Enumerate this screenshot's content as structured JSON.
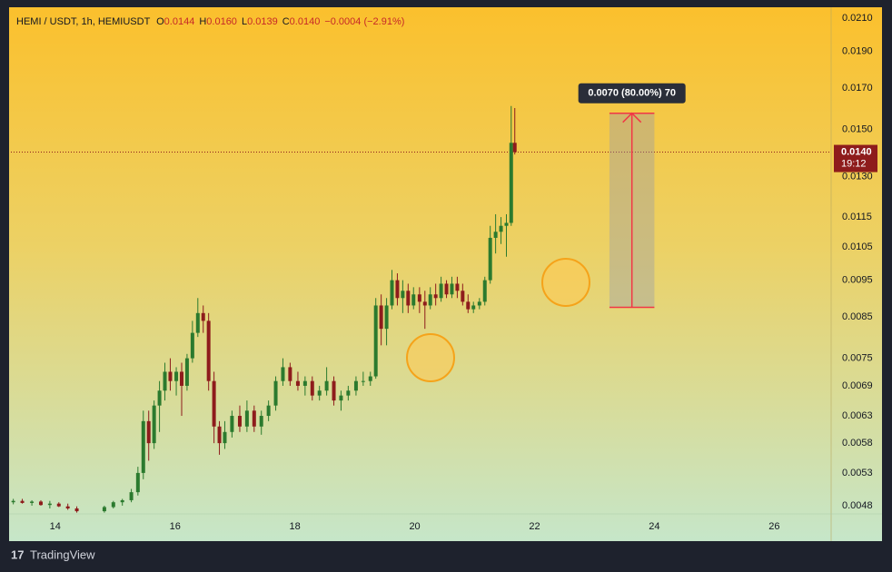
{
  "chart_data": {
    "type": "candlestick",
    "legend": {
      "symbol": "HEMI / USDT, 1h, HEMIUSDT",
      "items": [
        {
          "key": "O",
          "value": "0.0144"
        },
        {
          "key": "H",
          "value": "0.0160"
        },
        {
          "key": "L",
          "value": "0.0139"
        },
        {
          "key": "C",
          "value": "0.0140"
        }
      ],
      "change": "−0.0004 (−2.91%)"
    },
    "x": [
      13.3,
      13.45,
      13.61,
      13.76,
      13.91,
      14.06,
      14.21,
      14.36,
      14.82,
      14.97,
      15.12,
      15.27,
      15.38,
      15.47,
      15.56,
      15.65,
      15.74,
      15.83,
      15.92,
      16.02,
      16.11,
      16.2,
      16.29,
      16.38,
      16.47,
      16.56,
      16.65,
      16.74,
      16.83,
      16.95,
      17.08,
      17.2,
      17.32,
      17.44,
      17.56,
      17.68,
      17.8,
      17.92,
      18.05,
      18.17,
      18.29,
      18.41,
      18.53,
      18.65,
      18.77,
      18.89,
      19.02,
      19.14,
      19.26,
      19.35,
      19.44,
      19.53,
      19.62,
      19.71,
      19.8,
      19.89,
      19.98,
      20.08,
      20.17,
      20.26,
      20.35,
      20.44,
      20.53,
      20.62,
      20.71,
      20.8,
      20.89,
      20.98,
      21.08,
      21.17,
      21.26,
      21.35,
      21.44,
      21.53,
      21.61,
      21.67
    ],
    "ohlc": [
      [
        0.00485,
        0.0049,
        0.00482,
        0.00487
      ],
      [
        0.00487,
        0.0049,
        0.00483,
        0.00484
      ],
      [
        0.00484,
        0.00488,
        0.0048,
        0.00486
      ],
      [
        0.00486,
        0.00488,
        0.0048,
        0.00481
      ],
      [
        0.00481,
        0.00487,
        0.00476,
        0.00483
      ],
      [
        0.00483,
        0.00485,
        0.00478,
        0.00479
      ],
      [
        0.00479,
        0.00483,
        0.00474,
        0.00476
      ],
      [
        0.00476,
        0.00479,
        0.0047,
        0.00472
      ],
      [
        0.00472,
        0.0048,
        0.0047,
        0.00478
      ],
      [
        0.00478,
        0.00487,
        0.00476,
        0.00485
      ],
      [
        0.00485,
        0.0049,
        0.0048,
        0.00488
      ],
      [
        0.00488,
        0.00505,
        0.00485,
        0.005
      ],
      [
        0.005,
        0.0054,
        0.00495,
        0.0053
      ],
      [
        0.0053,
        0.0064,
        0.0052,
        0.0062
      ],
      [
        0.0062,
        0.0064,
        0.0055,
        0.0058
      ],
      [
        0.0058,
        0.0066,
        0.0057,
        0.0065
      ],
      [
        0.0065,
        0.007,
        0.006,
        0.0068
      ],
      [
        0.0068,
        0.0074,
        0.0066,
        0.0072
      ],
      [
        0.0072,
        0.0075,
        0.0068,
        0.007
      ],
      [
        0.007,
        0.0073,
        0.0067,
        0.0072
      ],
      [
        0.0072,
        0.0074,
        0.0063,
        0.0069
      ],
      [
        0.0069,
        0.0076,
        0.0068,
        0.0075
      ],
      [
        0.0075,
        0.0084,
        0.0074,
        0.0081
      ],
      [
        0.0081,
        0.009,
        0.008,
        0.0086
      ],
      [
        0.0086,
        0.0088,
        0.0081,
        0.0084
      ],
      [
        0.0084,
        0.0086,
        0.0068,
        0.007
      ],
      [
        0.007,
        0.0072,
        0.0058,
        0.0061
      ],
      [
        0.0061,
        0.0062,
        0.0056,
        0.0058
      ],
      [
        0.0058,
        0.0062,
        0.0057,
        0.006
      ],
      [
        0.006,
        0.0064,
        0.0059,
        0.0063
      ],
      [
        0.0063,
        0.0065,
        0.006,
        0.0061
      ],
      [
        0.0061,
        0.0066,
        0.006,
        0.0064
      ],
      [
        0.0064,
        0.0065,
        0.006,
        0.0061
      ],
      [
        0.0061,
        0.0064,
        0.00595,
        0.0063
      ],
      [
        0.0063,
        0.0066,
        0.0062,
        0.0065
      ],
      [
        0.0065,
        0.0071,
        0.0064,
        0.007
      ],
      [
        0.007,
        0.0075,
        0.0069,
        0.0073
      ],
      [
        0.0073,
        0.0074,
        0.0069,
        0.007
      ],
      [
        0.007,
        0.0072,
        0.0068,
        0.0069
      ],
      [
        0.0069,
        0.0071,
        0.0067,
        0.007
      ],
      [
        0.007,
        0.0071,
        0.0066,
        0.0067
      ],
      [
        0.0067,
        0.0069,
        0.0066,
        0.0068
      ],
      [
        0.0068,
        0.0073,
        0.0067,
        0.007
      ],
      [
        0.007,
        0.0071,
        0.0065,
        0.0066
      ],
      [
        0.0066,
        0.0068,
        0.0064,
        0.0067
      ],
      [
        0.0067,
        0.0069,
        0.0066,
        0.0068
      ],
      [
        0.0068,
        0.0071,
        0.0067,
        0.007
      ],
      [
        0.007,
        0.0072,
        0.0069,
        0.007
      ],
      [
        0.007,
        0.0072,
        0.0069,
        0.0071
      ],
      [
        0.0071,
        0.009,
        0.00705,
        0.0088
      ],
      [
        0.0088,
        0.0091,
        0.0078,
        0.0082
      ],
      [
        0.0082,
        0.009,
        0.0078,
        0.0088
      ],
      [
        0.0088,
        0.0098,
        0.0087,
        0.0095
      ],
      [
        0.0095,
        0.0097,
        0.0088,
        0.009
      ],
      [
        0.009,
        0.0095,
        0.0086,
        0.0092
      ],
      [
        0.0092,
        0.0094,
        0.0086,
        0.0088
      ],
      [
        0.0088,
        0.0093,
        0.0087,
        0.0091
      ],
      [
        0.0091,
        0.0093,
        0.0086,
        0.0089
      ],
      [
        0.0089,
        0.0092,
        0.0082,
        0.0088
      ],
      [
        0.0088,
        0.0093,
        0.0087,
        0.0091
      ],
      [
        0.0091,
        0.0094,
        0.0088,
        0.009
      ],
      [
        0.009,
        0.0096,
        0.0089,
        0.0094
      ],
      [
        0.0094,
        0.0095,
        0.009,
        0.0091
      ],
      [
        0.0091,
        0.0096,
        0.009,
        0.0094
      ],
      [
        0.0094,
        0.0096,
        0.009,
        0.0092
      ],
      [
        0.0092,
        0.0094,
        0.0088,
        0.0089
      ],
      [
        0.0089,
        0.0091,
        0.0086,
        0.0087
      ],
      [
        0.0087,
        0.0089,
        0.0086,
        0.0088
      ],
      [
        0.0088,
        0.009,
        0.0087,
        0.0089
      ],
      [
        0.0089,
        0.0096,
        0.0088,
        0.0095
      ],
      [
        0.0095,
        0.0112,
        0.0094,
        0.0108
      ],
      [
        0.0108,
        0.0116,
        0.0103,
        0.011
      ],
      [
        0.011,
        0.0115,
        0.0106,
        0.0112
      ],
      [
        0.0112,
        0.0116,
        0.0102,
        0.0113
      ],
      [
        0.0113,
        0.0161,
        0.0112,
        0.0144
      ],
      [
        0.0144,
        0.016,
        0.0139,
        0.014
      ]
    ],
    "up_color": "#2b7a2e",
    "down_color": "#8e1c1c",
    "log": true,
    "grid": false,
    "xlim": [
      13.26,
      26.95
    ],
    "xticks": [
      14,
      16,
      18,
      20,
      22,
      24,
      26
    ],
    "ylim": [
      0.004695,
      0.02147
    ],
    "yticks": [
      {
        "value": 0.021,
        "label": "0.0210"
      },
      {
        "value": 0.019,
        "label": "0.0190"
      },
      {
        "value": 0.017,
        "label": "0.0170"
      },
      {
        "value": 0.015,
        "label": "0.0150"
      },
      {
        "value": 0.013,
        "label": "0.0130"
      },
      0.0115,
      0.0105,
      0.0095,
      0.0085,
      0.0075,
      0.0069,
      0.0063,
      0.0058,
      0.0053,
      0.0048
    ],
    "last_price": {
      "value": 0.014,
      "label": "0.0140",
      "countdown": "19:12",
      "color": "#8e1c1c"
    },
    "measure": {
      "from": 0.00875,
      "to": 0.01575,
      "x": [
        23.25,
        24.0
      ],
      "label": "0.0070 (80.00%) 70",
      "color": "#f23645"
    },
    "branding": "TradingView"
  }
}
